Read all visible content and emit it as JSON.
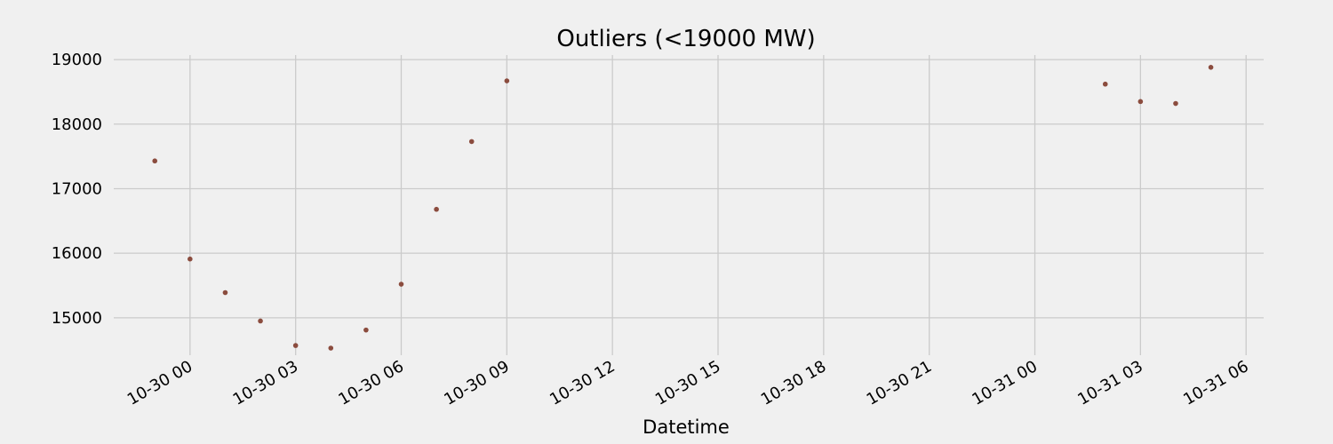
{
  "chart_data": {
    "type": "scatter",
    "title": "Outliers (<19000 MW)",
    "xlabel": "Datetime",
    "ylabel": "",
    "marker_color": "#8b4c3e",
    "background_color": "#f0f0f0",
    "grid_color": "#cbcbcb",
    "grid": true,
    "x_tick_labels": [
      "10-30 00",
      "10-30 03",
      "10-30 06",
      "10-30 09",
      "10-30 12",
      "10-30 15",
      "10-30 18",
      "10-30 21",
      "10-31 00",
      "10-31 03",
      "10-31 06"
    ],
    "y_tick_labels": [
      "15000",
      "16000",
      "17000",
      "18000",
      "19000"
    ],
    "ylim": [
      14420,
      19070
    ],
    "xlim": [
      "2018-10-29 21:50",
      "2018-10-31 06:30"
    ],
    "points": [
      {
        "x": "2018-10-29 23:00",
        "y": 17430
      },
      {
        "x": "2018-10-30 00:00",
        "y": 15910
      },
      {
        "x": "2018-10-30 01:00",
        "y": 15390
      },
      {
        "x": "2018-10-30 02:00",
        "y": 14950
      },
      {
        "x": "2018-10-30 03:00",
        "y": 14570
      },
      {
        "x": "2018-10-30 04:00",
        "y": 14530
      },
      {
        "x": "2018-10-30 05:00",
        "y": 14810
      },
      {
        "x": "2018-10-30 06:00",
        "y": 15520
      },
      {
        "x": "2018-10-30 07:00",
        "y": 16680
      },
      {
        "x": "2018-10-30 08:00",
        "y": 17730
      },
      {
        "x": "2018-10-30 09:00",
        "y": 18670
      },
      {
        "x": "2018-10-31 02:00",
        "y": 18620
      },
      {
        "x": "2018-10-31 03:00",
        "y": 18350
      },
      {
        "x": "2018-10-31 04:00",
        "y": 18320
      },
      {
        "x": "2018-10-31 05:00",
        "y": 18880
      }
    ]
  }
}
